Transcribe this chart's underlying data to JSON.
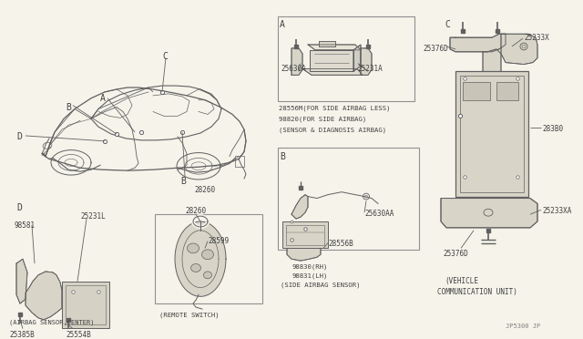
{
  "bg_color": "#f5f3ea",
  "line_color": "#606060",
  "text_color": "#404040",
  "border_color": "#808080",
  "watermark": "JP5300 JP",
  "label_A": "A",
  "label_B": "B",
  "label_C": "C",
  "label_D": "D",
  "sec_A_lines": [
    "28556M(FOR SIDE AIRBAG LESS)",
    "98820(FOR SIDE AIRBAG)",
    "(SENSOR & DIAGNOSIS AIRBAG)"
  ],
  "sec_A_parts": [
    "25630A",
    "25231A"
  ],
  "sec_B_parts": [
    "25630AA",
    "28556B"
  ],
  "sec_B_lines": [
    "98830(RH)",
    "98831(LH)",
    "(SIDE AIRBAG SENSOR)"
  ],
  "sec_C_parts_right": [
    "25233X",
    "283B0",
    "25233XA"
  ],
  "sec_C_parts_left": [
    "25376D",
    "25376D"
  ],
  "sec_C_lines": [
    "(VEHICLE",
    "COMMUNICATION UNIT)"
  ],
  "sec_D_parts": [
    "98581",
    "25231L",
    "25385B",
    "25554B"
  ],
  "sec_D_label": "(AIRBAG SENSOR,CENTER)",
  "remote_parts": [
    "28260",
    "28599"
  ],
  "remote_label": "(REMOTE SWITCH)"
}
